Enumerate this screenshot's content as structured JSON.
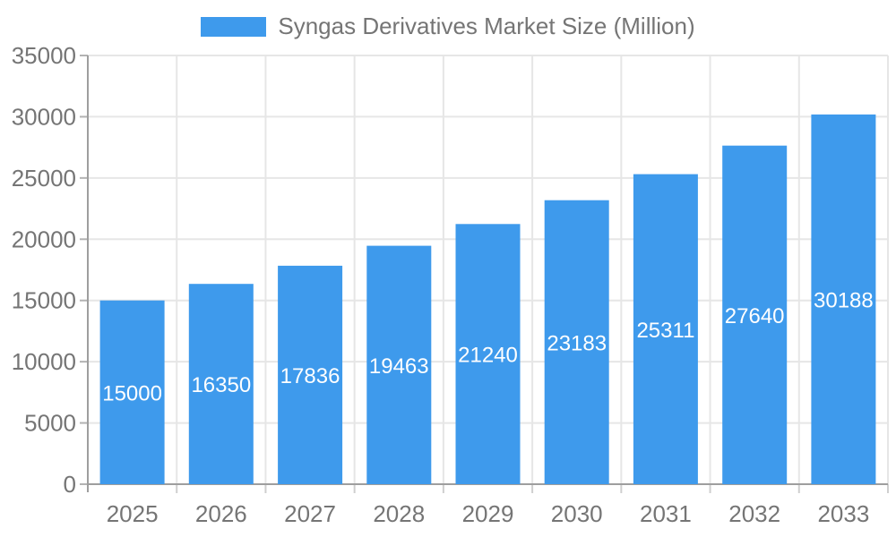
{
  "chart_data": {
    "type": "bar",
    "title": "Syngas Derivatives Market Size (Million)",
    "series_name": "Syngas Derivatives Market Size (Million)",
    "categories": [
      "2025",
      "2026",
      "2027",
      "2028",
      "2029",
      "2030",
      "2031",
      "2032",
      "2033"
    ],
    "values": [
      15000,
      16350,
      17836,
      19463,
      21240,
      23183,
      25311,
      27640,
      30188
    ],
    "xlabel": "",
    "ylabel": "",
    "ylim": [
      0,
      35000
    ],
    "yticks": [
      0,
      5000,
      10000,
      15000,
      20000,
      25000,
      30000,
      35000
    ],
    "grid": true,
    "legend_position": "top",
    "colors": {
      "bar": "#3E9AEC",
      "bar_value_label": "#ffffff",
      "axis_text": "#757575",
      "axis_line": "#9e9e9e",
      "gridline": "#e6e6e6",
      "minor_tick": "#cfcfcf",
      "y_tick": "#b3b3b3",
      "background": "#ffffff"
    }
  }
}
